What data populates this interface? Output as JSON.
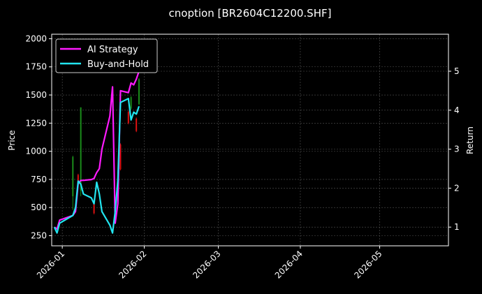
{
  "chart_data": {
    "type": "line",
    "title": "cnoption [BR2604C12200.SHF]",
    "ylabel_left": "Price",
    "ylabel_right": "Return",
    "x_range": [
      "2025-12-28",
      "2026-05-27"
    ],
    "y_left_range": [
      160,
      2040
    ],
    "y_right_range": [
      0.52,
      5.95
    ],
    "y_left_ticks": [
      250,
      500,
      750,
      1000,
      1250,
      1500,
      1750,
      2000
    ],
    "y_right_ticks": [
      1,
      2,
      3,
      4,
      5
    ],
    "x_ticks": [
      "2026-01",
      "2026-02",
      "2026-03",
      "2026-04",
      "2026-05"
    ],
    "x_tick_dates": [
      "2026-01-01",
      "2026-02-01",
      "2026-03-01",
      "2026-04-01",
      "2026-05-01"
    ],
    "grid": true,
    "legend_position": "top-left",
    "colors": {
      "background": "#000000",
      "grid": "#555555",
      "ai_strategy": "#ff1aff",
      "buy_and_hold": "#22e5f0",
      "candle_up": "#1a8c1a",
      "candle_down": "#dd1111"
    },
    "series": [
      {
        "name": "AI Strategy",
        "axis": "right",
        "points": [
          [
            "2025-12-29",
            1.0
          ],
          [
            "2025-12-30",
            0.95
          ],
          [
            "2025-12-31",
            1.18
          ],
          [
            "2026-01-05",
            1.3
          ],
          [
            "2026-01-06",
            1.4
          ],
          [
            "2026-01-07",
            2.12
          ],
          [
            "2026-01-08",
            2.2
          ],
          [
            "2026-01-09",
            2.2
          ],
          [
            "2026-01-12",
            2.22
          ],
          [
            "2026-01-13",
            2.25
          ],
          [
            "2026-01-14",
            2.4
          ],
          [
            "2026-01-15",
            2.5
          ],
          [
            "2026-01-16",
            3.0
          ],
          [
            "2026-01-19",
            3.85
          ],
          [
            "2026-01-20",
            4.6
          ],
          [
            "2026-01-21",
            1.1
          ],
          [
            "2026-01-22",
            1.6
          ],
          [
            "2026-01-23",
            4.5
          ],
          [
            "2026-01-26",
            4.45
          ],
          [
            "2026-01-27",
            4.7
          ],
          [
            "2026-01-28",
            4.65
          ],
          [
            "2026-01-29",
            4.8
          ],
          [
            "2026-01-30",
            5.0
          ]
        ]
      },
      {
        "name": "Buy-and-Hold",
        "axis": "right",
        "points": [
          [
            "2025-12-29",
            1.0
          ],
          [
            "2025-12-30",
            0.85
          ],
          [
            "2025-12-31",
            1.1
          ],
          [
            "2026-01-05",
            1.3
          ],
          [
            "2026-01-06",
            1.5
          ],
          [
            "2026-01-07",
            2.18
          ],
          [
            "2026-01-08",
            2.1
          ],
          [
            "2026-01-09",
            1.85
          ],
          [
            "2026-01-12",
            1.75
          ],
          [
            "2026-01-13",
            1.6
          ],
          [
            "2026-01-14",
            2.15
          ],
          [
            "2026-01-15",
            1.85
          ],
          [
            "2026-01-16",
            1.4
          ],
          [
            "2026-01-19",
            1.05
          ],
          [
            "2026-01-20",
            0.85
          ],
          [
            "2026-01-21",
            1.4
          ],
          [
            "2026-01-22",
            2.2
          ],
          [
            "2026-01-23",
            4.2
          ],
          [
            "2026-01-26",
            4.3
          ],
          [
            "2026-01-27",
            3.75
          ],
          [
            "2026-01-28",
            3.95
          ],
          [
            "2026-01-29",
            3.9
          ],
          [
            "2026-01-30",
            4.1
          ]
        ]
      }
    ],
    "candles": [
      {
        "date": "2026-01-05",
        "open": 600,
        "close": 950,
        "low": 480,
        "high": 960
      },
      {
        "date": "2026-01-07",
        "open": 790,
        "close": 700,
        "low": 690,
        "high": 800
      },
      {
        "date": "2026-01-08",
        "open": 650,
        "close": 1390,
        "low": 600,
        "high": 1390
      },
      {
        "date": "2026-01-13",
        "open": 560,
        "close": 450,
        "low": 440,
        "high": 580
      },
      {
        "date": "2026-01-23",
        "open": 1060,
        "close": 840,
        "low": 830,
        "high": 1070
      },
      {
        "date": "2026-01-26",
        "open": 1350,
        "close": 1250,
        "low": 1240,
        "high": 1360
      },
      {
        "date": "2026-01-27",
        "open": 1380,
        "close": 1480,
        "low": 1370,
        "high": 1490
      },
      {
        "date": "2026-01-29",
        "open": 1290,
        "close": 1180,
        "low": 1170,
        "high": 1300
      },
      {
        "date": "2026-01-30",
        "open": 1420,
        "close": 1640,
        "low": 1410,
        "high": 1650
      }
    ]
  }
}
